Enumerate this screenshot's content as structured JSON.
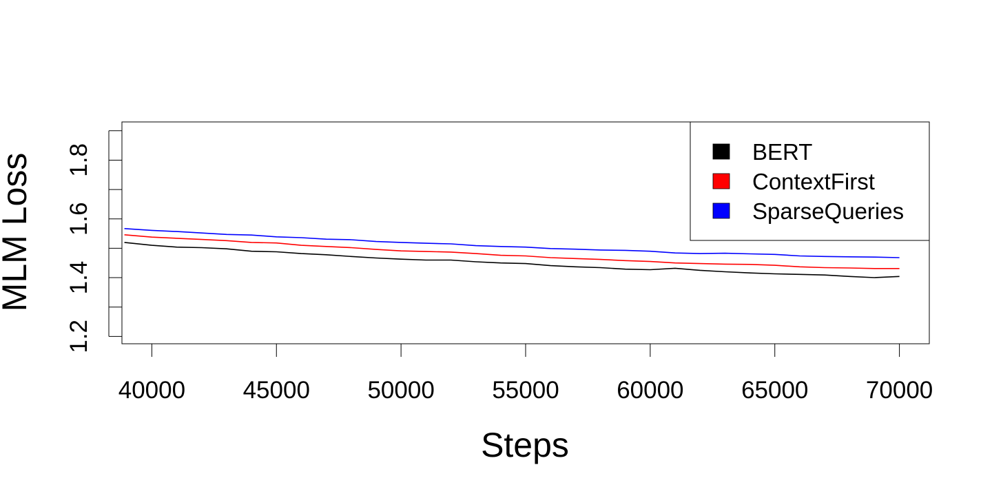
{
  "chart_data": {
    "type": "line",
    "xlabel": "Steps",
    "ylabel": "MLM Loss",
    "xlim": [
      38800,
      71200
    ],
    "ylim": [
      1.175,
      1.93
    ],
    "xticks": [
      40000,
      45000,
      50000,
      55000,
      60000,
      65000,
      70000
    ],
    "yticks": [
      1.2,
      1.3,
      1.4,
      1.5,
      1.6,
      1.7,
      1.8,
      1.9
    ],
    "ytick_labels": [
      "1.2",
      "",
      "1.4",
      "",
      "1.6",
      "",
      "1.8",
      ""
    ],
    "grid": false,
    "legend_position": "top-right",
    "x": [
      38900,
      40000,
      41000,
      42000,
      43000,
      44000,
      45000,
      46000,
      47000,
      48000,
      49000,
      50000,
      51000,
      52000,
      53000,
      54000,
      55000,
      56000,
      57000,
      58000,
      59000,
      60000,
      61000,
      62000,
      63000,
      64000,
      65000,
      66000,
      67000,
      68000,
      69000,
      70000
    ],
    "series": [
      {
        "name": "BERT",
        "color": "#000000",
        "values": [
          1.52,
          1.51,
          1.504,
          1.502,
          1.498,
          1.49,
          1.488,
          1.482,
          1.478,
          1.472,
          1.467,
          1.463,
          1.46,
          1.46,
          1.454,
          1.45,
          1.448,
          1.441,
          1.437,
          1.434,
          1.429,
          1.427,
          1.432,
          1.425,
          1.42,
          1.416,
          1.413,
          1.411,
          1.409,
          1.404,
          1.4,
          1.404
        ]
      },
      {
        "name": "ContextFirst",
        "color": "#ff0000",
        "values": [
          1.546,
          1.538,
          1.534,
          1.53,
          1.526,
          1.52,
          1.518,
          1.51,
          1.506,
          1.502,
          1.496,
          1.491,
          1.489,
          1.487,
          1.482,
          1.476,
          1.474,
          1.468,
          1.465,
          1.462,
          1.458,
          1.455,
          1.45,
          1.448,
          1.446,
          1.445,
          1.442,
          1.437,
          1.434,
          1.433,
          1.431,
          1.431
        ]
      },
      {
        "name": "SparseQueries",
        "color": "#0000ff",
        "values": [
          1.567,
          1.561,
          1.557,
          1.552,
          1.547,
          1.545,
          1.539,
          1.536,
          1.531,
          1.529,
          1.523,
          1.52,
          1.517,
          1.515,
          1.509,
          1.506,
          1.504,
          1.499,
          1.497,
          1.494,
          1.493,
          1.49,
          1.484,
          1.482,
          1.483,
          1.481,
          1.479,
          1.474,
          1.472,
          1.471,
          1.47,
          1.468
        ]
      }
    ]
  }
}
